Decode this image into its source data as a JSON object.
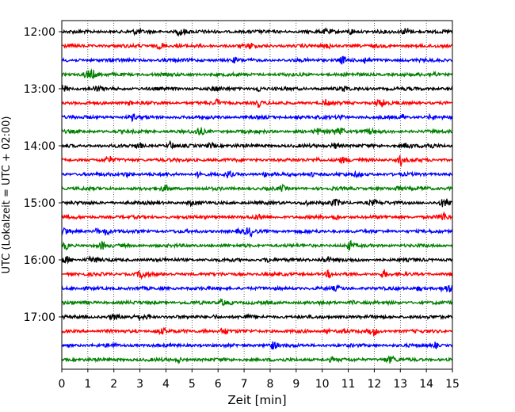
{
  "chart_data": {
    "type": "line",
    "subtype": "helicorder-seismogram",
    "title": "",
    "xlabel": "Zeit  [min]",
    "ylabel": "UTC (Lokalzeit = UTC + 02:00)",
    "x_ticks": [
      "0",
      "1",
      "2",
      "3",
      "4",
      "5",
      "6",
      "7",
      "8",
      "9",
      "10",
      "11",
      "12",
      "13",
      "14",
      "15"
    ],
    "xlim": [
      0,
      15
    ],
    "y_ticks": [
      "12:00",
      "13:00",
      "14:00",
      "15:00",
      "16:00",
      "17:00"
    ],
    "grid": "vertical dotted lines at each minute",
    "trace_minutes": 15,
    "traces": [
      {
        "start": "12:00",
        "color": "#000000"
      },
      {
        "start": "12:15",
        "color": "#ff0000"
      },
      {
        "start": "12:30",
        "color": "#0000ff"
      },
      {
        "start": "12:45",
        "color": "#008000"
      },
      {
        "start": "13:00",
        "color": "#000000"
      },
      {
        "start": "13:15",
        "color": "#ff0000"
      },
      {
        "start": "13:30",
        "color": "#0000ff"
      },
      {
        "start": "13:45",
        "color": "#008000"
      },
      {
        "start": "14:00",
        "color": "#000000"
      },
      {
        "start": "14:15",
        "color": "#ff0000"
      },
      {
        "start": "14:30",
        "color": "#0000ff"
      },
      {
        "start": "14:45",
        "color": "#008000"
      },
      {
        "start": "15:00",
        "color": "#000000"
      },
      {
        "start": "15:15",
        "color": "#ff0000"
      },
      {
        "start": "15:30",
        "color": "#0000ff"
      },
      {
        "start": "15:45",
        "color": "#008000"
      },
      {
        "start": "16:00",
        "color": "#000000"
      },
      {
        "start": "16:15",
        "color": "#ff0000"
      },
      {
        "start": "16:30",
        "color": "#0000ff"
      },
      {
        "start": "16:45",
        "color": "#008000"
      },
      {
        "start": "17:00",
        "color": "#000000"
      },
      {
        "start": "17:15",
        "color": "#ff0000"
      },
      {
        "start": "17:30",
        "color": "#0000ff"
      },
      {
        "start": "17:45",
        "color": "#008000"
      }
    ]
  }
}
